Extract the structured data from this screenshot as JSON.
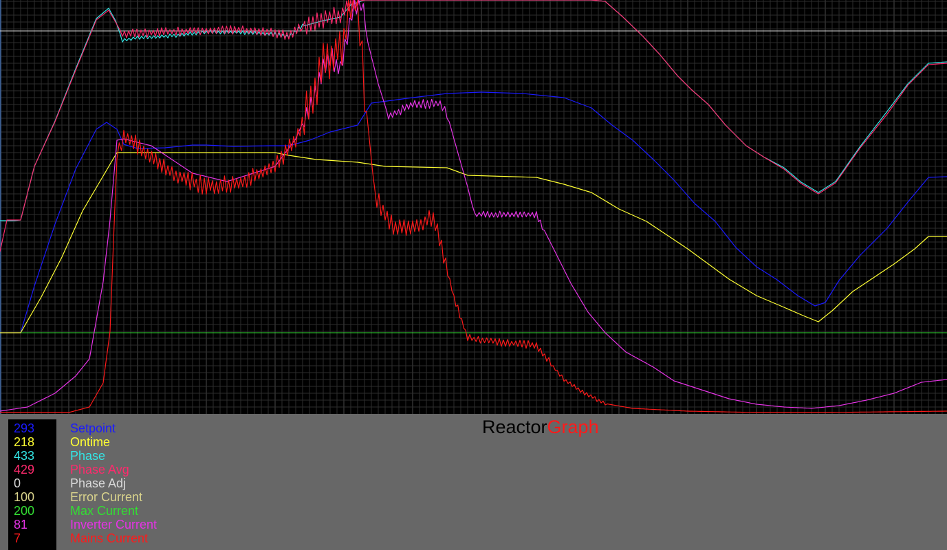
{
  "app": {
    "title_part1": "Reactor",
    "title_part2": "Graph"
  },
  "legend": [
    {
      "value": "293",
      "label": "Setpoint",
      "color": "#1a1aff"
    },
    {
      "value": "218",
      "label": "Ontime",
      "color": "#ffff33"
    },
    {
      "value": "433",
      "label": "Phase",
      "color": "#33e6e6"
    },
    {
      "value": "429",
      "label": "Phase Avg",
      "color": "#ff2a6d"
    },
    {
      "value": "0",
      "label": "Phase Adj",
      "color": "#d9d9d9"
    },
    {
      "value": "100",
      "label": "Error Current",
      "color": "#d9d38c"
    },
    {
      "value": "200",
      "label": "Max Current",
      "color": "#33dd33"
    },
    {
      "value": "81",
      "label": "Inverter Current",
      "color": "#e633e6"
    },
    {
      "value": "7",
      "label": "Mains Current",
      "color": "#ff1a1a"
    }
  ],
  "chart_data": {
    "type": "line",
    "xlim": [
      0,
      1377
    ],
    "ylim": [
      0,
      602
    ],
    "grid": true,
    "legend_position": "bottom-left",
    "hlines": [
      {
        "y": 557,
        "color": "#d9d9d9"
      },
      {
        "y": 118,
        "color": "#33dd33"
      }
    ],
    "series": [
      {
        "name": "Phase",
        "color": "#33e6e6",
        "points": [
          [
            0,
            281
          ],
          [
            20,
            281
          ],
          [
            30,
            282
          ],
          [
            50,
            360
          ],
          [
            80,
            426
          ],
          [
            110,
            502
          ],
          [
            140,
            575
          ],
          [
            158,
            590
          ],
          [
            168,
            572
          ],
          [
            178,
            543
          ],
          [
            200,
            547
          ],
          [
            250,
            550
          ],
          [
            300,
            555
          ],
          [
            350,
            555
          ],
          [
            400,
            552
          ],
          [
            420,
            549
          ],
          [
            440,
            564
          ],
          [
            470,
            572
          ],
          [
            495,
            577
          ],
          [
            510,
            595
          ],
          [
            530,
            602
          ],
          [
            560,
            602
          ],
          [
            860,
            602
          ],
          [
            880,
            600
          ],
          [
            905,
            578
          ],
          [
            935,
            549
          ],
          [
            960,
            522
          ],
          [
            985,
            492
          ],
          [
            1005,
            472
          ],
          [
            1030,
            450
          ],
          [
            1055,
            420
          ],
          [
            1085,
            390
          ],
          [
            1110,
            374
          ],
          [
            1140,
            358
          ],
          [
            1165,
            337
          ],
          [
            1190,
            322
          ],
          [
            1215,
            338
          ],
          [
            1250,
            388
          ],
          [
            1290,
            440
          ],
          [
            1320,
            480
          ],
          [
            1350,
            510
          ],
          [
            1377,
            512
          ]
        ]
      },
      {
        "name": "Phase Avg",
        "color": "#ff2a6d",
        "points": [
          [
            0,
            236
          ],
          [
            10,
            282
          ],
          [
            30,
            282
          ],
          [
            50,
            360
          ],
          [
            80,
            425
          ],
          [
            110,
            500
          ],
          [
            140,
            573
          ],
          [
            158,
            587
          ],
          [
            168,
            570
          ],
          [
            178,
            552
          ],
          [
            250,
            556
          ],
          [
            300,
            558
          ],
          [
            350,
            558
          ],
          [
            400,
            554
          ],
          [
            420,
            550
          ],
          [
            440,
            564
          ],
          [
            470,
            574
          ],
          [
            495,
            580
          ],
          [
            510,
            598
          ],
          [
            530,
            602
          ],
          [
            860,
            602
          ],
          [
            880,
            600
          ],
          [
            905,
            578
          ],
          [
            935,
            549
          ],
          [
            960,
            522
          ],
          [
            985,
            492
          ],
          [
            1005,
            472
          ],
          [
            1030,
            450
          ],
          [
            1055,
            420
          ],
          [
            1085,
            390
          ],
          [
            1110,
            374
          ],
          [
            1140,
            356
          ],
          [
            1165,
            335
          ],
          [
            1190,
            320
          ],
          [
            1215,
            336
          ],
          [
            1250,
            386
          ],
          [
            1290,
            436
          ],
          [
            1320,
            478
          ],
          [
            1350,
            508
          ],
          [
            1377,
            510
          ]
        ]
      },
      {
        "name": "Setpoint",
        "color": "#1a1aff",
        "points": [
          [
            0,
            118
          ],
          [
            30,
            118
          ],
          [
            50,
            186
          ],
          [
            80,
            276
          ],
          [
            110,
            356
          ],
          [
            140,
            414
          ],
          [
            155,
            424
          ],
          [
            170,
            414
          ],
          [
            180,
            392
          ],
          [
            200,
            386
          ],
          [
            240,
            387
          ],
          [
            280,
            391
          ],
          [
            300,
            391
          ],
          [
            340,
            389
          ],
          [
            390,
            390
          ],
          [
            420,
            390
          ],
          [
            450,
            398
          ],
          [
            480,
            410
          ],
          [
            520,
            420
          ],
          [
            540,
            452
          ],
          [
            570,
            456
          ],
          [
            600,
            460
          ],
          [
            650,
            466
          ],
          [
            700,
            468
          ],
          [
            760,
            466
          ],
          [
            820,
            460
          ],
          [
            860,
            445
          ],
          [
            890,
            420
          ],
          [
            920,
            398
          ],
          [
            950,
            370
          ],
          [
            980,
            340
          ],
          [
            1010,
            306
          ],
          [
            1040,
            280
          ],
          [
            1070,
            242
          ],
          [
            1100,
            214
          ],
          [
            1130,
            195
          ],
          [
            1160,
            172
          ],
          [
            1185,
            157
          ],
          [
            1200,
            162
          ],
          [
            1220,
            194
          ],
          [
            1250,
            230
          ],
          [
            1290,
            270
          ],
          [
            1320,
            308
          ],
          [
            1350,
            344
          ],
          [
            1377,
            345
          ]
        ]
      },
      {
        "name": "Ontime",
        "color": "#ffff33",
        "points": [
          [
            0,
            118
          ],
          [
            30,
            118
          ],
          [
            60,
            170
          ],
          [
            90,
            228
          ],
          [
            120,
            295
          ],
          [
            150,
            346
          ],
          [
            170,
            380
          ],
          [
            200,
            380
          ],
          [
            300,
            380
          ],
          [
            400,
            380
          ],
          [
            420,
            376
          ],
          [
            460,
            370
          ],
          [
            520,
            366
          ],
          [
            560,
            360
          ],
          [
            650,
            358
          ],
          [
            680,
            347
          ],
          [
            780,
            344
          ],
          [
            820,
            334
          ],
          [
            860,
            322
          ],
          [
            900,
            298
          ],
          [
            940,
            280
          ],
          [
            970,
            260
          ],
          [
            1000,
            240
          ],
          [
            1030,
            218
          ],
          [
            1060,
            196
          ],
          [
            1100,
            172
          ],
          [
            1140,
            155
          ],
          [
            1170,
            142
          ],
          [
            1190,
            134
          ],
          [
            1210,
            150
          ],
          [
            1240,
            178
          ],
          [
            1270,
            198
          ],
          [
            1300,
            218
          ],
          [
            1330,
            240
          ],
          [
            1350,
            258
          ],
          [
            1377,
            258
          ]
        ]
      },
      {
        "name": "Inverter Current",
        "color": "#e633e6",
        "points": [
          [
            0,
            4
          ],
          [
            40,
            10
          ],
          [
            80,
            30
          ],
          [
            110,
            55
          ],
          [
            130,
            80
          ],
          [
            150,
            192
          ],
          [
            160,
            282
          ],
          [
            170,
            398
          ],
          [
            180,
            400
          ],
          [
            220,
            390
          ],
          [
            280,
            350
          ],
          [
            330,
            338
          ],
          [
            400,
            360
          ],
          [
            430,
            400
          ],
          [
            455,
            458
          ],
          [
            470,
            500
          ],
          [
            480,
            518
          ],
          [
            495,
            500
          ],
          [
            505,
            550
          ],
          [
            515,
            595
          ],
          [
            525,
            600
          ],
          [
            535,
            540
          ],
          [
            550,
            480
          ],
          [
            565,
            432
          ],
          [
            600,
            450
          ],
          [
            640,
            452
          ],
          [
            650,
            437
          ],
          [
            660,
            400
          ],
          [
            680,
            330
          ],
          [
            690,
            290
          ],
          [
            700,
            290
          ],
          [
            780,
            290
          ],
          [
            800,
            250
          ],
          [
            830,
            190
          ],
          [
            855,
            148
          ],
          [
            880,
            118
          ],
          [
            910,
            90
          ],
          [
            950,
            68
          ],
          [
            980,
            48
          ],
          [
            1020,
            35
          ],
          [
            1060,
            22
          ],
          [
            1100,
            14
          ],
          [
            1140,
            10
          ],
          [
            1180,
            8
          ],
          [
            1220,
            12
          ],
          [
            1260,
            20
          ],
          [
            1300,
            30
          ],
          [
            1340,
            46
          ],
          [
            1377,
            50
          ]
        ]
      },
      {
        "name": "Mains Current",
        "color": "#ff1a1a",
        "points": [
          [
            0,
            2
          ],
          [
            100,
            2
          ],
          [
            130,
            10
          ],
          [
            150,
            45
          ],
          [
            160,
            120
          ],
          [
            170,
            380
          ],
          [
            180,
            404
          ],
          [
            200,
            390
          ],
          [
            250,
            350
          ],
          [
            300,
            330
          ],
          [
            350,
            335
          ],
          [
            400,
            360
          ],
          [
            430,
            400
          ],
          [
            455,
            460
          ],
          [
            470,
            510
          ],
          [
            485,
            522
          ],
          [
            500,
            540
          ],
          [
            510,
            598
          ],
          [
            520,
            602
          ],
          [
            530,
            470
          ],
          [
            545,
            320
          ],
          [
            560,
            290
          ],
          [
            575,
            270
          ],
          [
            600,
            270
          ],
          [
            630,
            285
          ],
          [
            645,
            230
          ],
          [
            660,
            170
          ],
          [
            680,
            110
          ],
          [
            720,
            105
          ],
          [
            780,
            100
          ],
          [
            795,
            80
          ],
          [
            820,
            50
          ],
          [
            850,
            30
          ],
          [
            880,
            15
          ],
          [
            920,
            8
          ],
          [
            1000,
            4
          ],
          [
            1100,
            2
          ],
          [
            1200,
            2
          ],
          [
            1377,
            4
          ]
        ]
      }
    ]
  }
}
